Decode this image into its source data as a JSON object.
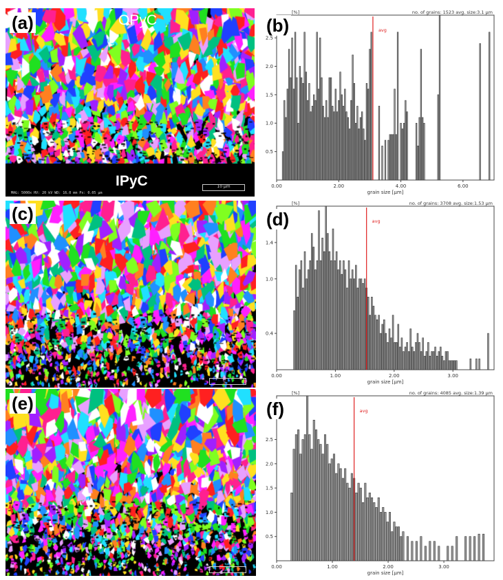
{
  "maps": [
    {
      "panel": "(a)",
      "top_label": "OPyC",
      "bottom_label": "IPyC",
      "scale_label": "10 µm",
      "footer": "MAG: 5000x   HV: 20 kV   WD: 16.0 mm   Px: 0.05 µm"
    },
    {
      "panel": "(c)"
    },
    {
      "panel": "(e)"
    }
  ],
  "chart_data": [
    {
      "type": "bar",
      "panel": "(b)",
      "ylabel_unit": "[%]",
      "header": "no. of grains: 1523  avg. size:3.1 µm",
      "xlabel": "grain size [µm]",
      "avg_label": "avg",
      "avg_value": 3.1,
      "xlim": [
        0,
        7.0
      ],
      "ylim": [
        0,
        2.9
      ],
      "xticks": [
        "0.00",
        "2.00",
        "4.00",
        "6.00"
      ],
      "yticks": [
        "0.5",
        "1.0",
        "1.5",
        "2.0",
        "2.5"
      ],
      "x": [
        0.2,
        0.25,
        0.3,
        0.35,
        0.4,
        0.45,
        0.5,
        0.55,
        0.6,
        0.65,
        0.7,
        0.75,
        0.8,
        0.85,
        0.9,
        0.95,
        1.0,
        1.05,
        1.1,
        1.15,
        1.2,
        1.25,
        1.3,
        1.35,
        1.4,
        1.45,
        1.5,
        1.55,
        1.6,
        1.65,
        1.7,
        1.75,
        1.8,
        1.85,
        1.9,
        1.95,
        2.0,
        2.05,
        2.1,
        2.15,
        2.2,
        2.25,
        2.3,
        2.35,
        2.4,
        2.45,
        2.5,
        2.55,
        2.6,
        2.65,
        2.7,
        2.75,
        2.8,
        2.85,
        2.9,
        2.95,
        3.0,
        3.05,
        3.3,
        3.4,
        3.5,
        3.6,
        3.65,
        3.7,
        3.75,
        3.8,
        3.85,
        3.9,
        4.0,
        4.05,
        4.1,
        4.15,
        4.2,
        4.5,
        4.55,
        4.6,
        4.65,
        4.7,
        4.75,
        5.2,
        5.25,
        6.55,
        6.85
      ],
      "values": [
        0.5,
        1.4,
        1.1,
        1.6,
        2.3,
        1.8,
        2.5,
        1.6,
        2.6,
        1.8,
        1.0,
        2.0,
        1.8,
        1.7,
        2.6,
        1.9,
        1.4,
        1.7,
        1.2,
        1.3,
        1.5,
        1.4,
        2.6,
        1.6,
        2.5,
        1.8,
        1.3,
        1.1,
        1.4,
        1.1,
        1.8,
        1.8,
        1.3,
        1.2,
        1.6,
        1.2,
        1.4,
        1.9,
        1.5,
        1.3,
        1.6,
        1.2,
        1.1,
        0.9,
        1.4,
        2.2,
        1.7,
        1.0,
        1.3,
        0.9,
        1.1,
        1.2,
        0.9,
        0.7,
        1.7,
        1.6,
        2.3,
        2.6,
        1.3,
        0.6,
        0.7,
        0.7,
        0.8,
        0.8,
        0.8,
        1.6,
        0.8,
        2.6,
        1.0,
        0.9,
        1.0,
        1.4,
        1.2,
        1.0,
        0.6,
        1.1,
        2.3,
        1.1,
        1.0,
        1.5,
        2.9,
        2.4,
        2.6
      ]
    },
    {
      "type": "bar",
      "panel": "(d)",
      "ylabel_unit": "[%]",
      "header": "no. of grains: 3708  avg. size:1.53 µm",
      "xlabel": "grain size [µm]",
      "avg_label": "avg",
      "avg_value": 1.53,
      "xlim": [
        0,
        3.7
      ],
      "ylim": [
        0,
        1.8
      ],
      "xticks": [
        "0.00",
        "1.00",
        "2.00",
        "3.00"
      ],
      "yticks": [
        "0.4",
        "1.0",
        "1.4"
      ],
      "x": [
        0.3,
        0.33,
        0.36,
        0.39,
        0.42,
        0.45,
        0.48,
        0.51,
        0.54,
        0.57,
        0.6,
        0.63,
        0.66,
        0.69,
        0.72,
        0.75,
        0.78,
        0.81,
        0.84,
        0.87,
        0.9,
        0.93,
        0.96,
        0.99,
        1.02,
        1.05,
        1.08,
        1.11,
        1.14,
        1.17,
        1.2,
        1.23,
        1.26,
        1.29,
        1.32,
        1.35,
        1.38,
        1.41,
        1.44,
        1.47,
        1.5,
        1.53,
        1.56,
        1.59,
        1.62,
        1.65,
        1.68,
        1.71,
        1.74,
        1.77,
        1.8,
        1.83,
        1.86,
        1.89,
        1.92,
        1.95,
        1.98,
        2.01,
        2.04,
        2.07,
        2.1,
        2.13,
        2.16,
        2.19,
        2.22,
        2.25,
        2.28,
        2.31,
        2.34,
        2.37,
        2.4,
        2.43,
        2.46,
        2.49,
        2.52,
        2.55,
        2.58,
        2.61,
        2.64,
        2.67,
        2.7,
        2.73,
        2.76,
        2.79,
        2.82,
        2.85,
        2.88,
        2.91,
        2.94,
        2.97,
        3.0,
        3.03,
        3.06,
        3.3,
        3.4,
        3.45,
        3.6
      ],
      "values": [
        0.65,
        1.15,
        0.8,
        1.1,
        1.2,
        0.9,
        1.3,
        1.0,
        1.1,
        1.2,
        1.5,
        1.35,
        1.1,
        1.2,
        1.75,
        1.2,
        1.45,
        1.3,
        1.8,
        1.5,
        1.3,
        1.2,
        1.55,
        1.2,
        1.3,
        1.1,
        1.2,
        1.05,
        1.2,
        1.1,
        0.9,
        1.2,
        1.0,
        1.1,
        1.0,
        1.15,
        0.9,
        1.0,
        1.0,
        0.95,
        1.0,
        0.9,
        0.8,
        0.6,
        0.8,
        0.7,
        0.6,
        0.55,
        0.6,
        0.4,
        0.5,
        0.55,
        0.4,
        0.3,
        0.45,
        0.35,
        0.6,
        0.3,
        0.3,
        0.5,
        0.25,
        0.35,
        0.2,
        0.25,
        0.3,
        0.2,
        0.45,
        0.25,
        0.2,
        0.3,
        0.4,
        0.3,
        0.2,
        0.35,
        0.15,
        0.2,
        0.3,
        0.15,
        0.2,
        0.2,
        0.25,
        0.15,
        0.2,
        0.25,
        0.15,
        0.1,
        0.2,
        0.2,
        0.1,
        0.1,
        0.1,
        0.1,
        0.1,
        0.12,
        0.12,
        0.12,
        0.4
      ]
    },
    {
      "type": "bar",
      "panel": "(f)",
      "ylabel_unit": "[%]",
      "header": "no. of grains: 4085  avg. size:1.39 µm",
      "xlabel": "grain size [µm]",
      "avg_label": "avg",
      "avg_value": 1.39,
      "xlim": [
        0,
        3.9
      ],
      "ylim": [
        0,
        3.4
      ],
      "xticks": [
        "0.00",
        "1.00",
        "2.00",
        "3.00"
      ],
      "yticks": [
        "0.5",
        "1.0",
        "1.5",
        "2.0",
        "2.5",
        "3.0"
      ],
      "x": [
        0.27,
        0.31,
        0.35,
        0.39,
        0.43,
        0.47,
        0.51,
        0.55,
        0.59,
        0.63,
        0.67,
        0.71,
        0.75,
        0.79,
        0.83,
        0.87,
        0.91,
        0.95,
        0.99,
        1.03,
        1.07,
        1.11,
        1.15,
        1.19,
        1.23,
        1.27,
        1.31,
        1.35,
        1.39,
        1.43,
        1.47,
        1.51,
        1.55,
        1.59,
        1.63,
        1.67,
        1.71,
        1.75,
        1.79,
        1.83,
        1.87,
        1.91,
        1.95,
        1.99,
        2.03,
        2.07,
        2.11,
        2.15,
        2.19,
        2.23,
        2.27,
        2.35,
        2.43,
        2.51,
        2.59,
        2.67,
        2.75,
        2.83,
        2.91,
        3.07,
        3.15,
        3.23,
        3.39,
        3.47,
        3.55,
        3.63,
        3.71
      ],
      "values": [
        1.4,
        2.3,
        2.6,
        2.7,
        2.2,
        2.5,
        2.6,
        3.4,
        2.6,
        2.3,
        2.9,
        2.7,
        2.5,
        2.4,
        2.2,
        2.6,
        2.4,
        2.0,
        2.1,
        2.2,
        1.8,
        2.0,
        1.9,
        1.7,
        1.9,
        1.6,
        1.5,
        1.8,
        1.7,
        1.4,
        1.6,
        1.5,
        1.2,
        1.6,
        1.3,
        1.4,
        1.3,
        1.2,
        1.1,
        1.3,
        1.0,
        1.1,
        1.0,
        0.8,
        1.0,
        0.6,
        0.8,
        0.7,
        0.7,
        0.5,
        0.6,
        0.5,
        0.4,
        0.4,
        0.5,
        0.3,
        0.4,
        0.4,
        0.3,
        0.3,
        0.3,
        0.5,
        0.5,
        0.5,
        0.5,
        0.55,
        0.55
      ]
    }
  ]
}
